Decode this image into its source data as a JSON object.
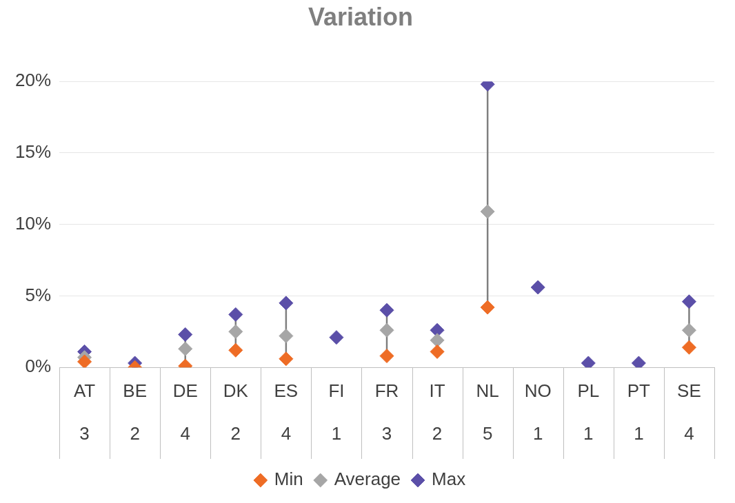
{
  "chart_data": {
    "type": "scatter",
    "title": "Variation",
    "categories": [
      "AT\n3",
      "BE\n2",
      "DE\n4",
      "DK\n2",
      "ES\n4",
      "FI\n1",
      "FR\n3",
      "IT\n2",
      "NL\n5",
      "NO\n1",
      "PL\n1",
      "PT\n1",
      "SE\n4"
    ],
    "series": [
      {
        "name": "Min",
        "color": "#ee6c25",
        "values": [
          0.4,
          0.0,
          0.1,
          1.2,
          0.6,
          null,
          0.8,
          1.1,
          4.2,
          null,
          null,
          null,
          1.4
        ]
      },
      {
        "name": "Average",
        "color": "#a6a6a6",
        "values": [
          0.7,
          null,
          1.3,
          2.5,
          2.2,
          null,
          2.6,
          1.9,
          10.9,
          null,
          null,
          null,
          2.6
        ]
      },
      {
        "name": "Max",
        "color": "#5b4fa8",
        "values": [
          1.1,
          0.3,
          2.3,
          3.7,
          4.5,
          2.1,
          4.0,
          2.6,
          19.8,
          5.6,
          0.3,
          0.3,
          4.6
        ]
      }
    ],
    "ylim": [
      0,
      20
    ],
    "yticks": [
      {
        "value": 0,
        "label": "0%"
      },
      {
        "value": 5,
        "label": "5%"
      },
      {
        "value": 10,
        "label": "10%"
      },
      {
        "value": 15,
        "label": "15%"
      },
      {
        "value": 20,
        "label": "20%"
      }
    ],
    "grid": "y",
    "legend": "bottom",
    "marker": "diamond"
  }
}
